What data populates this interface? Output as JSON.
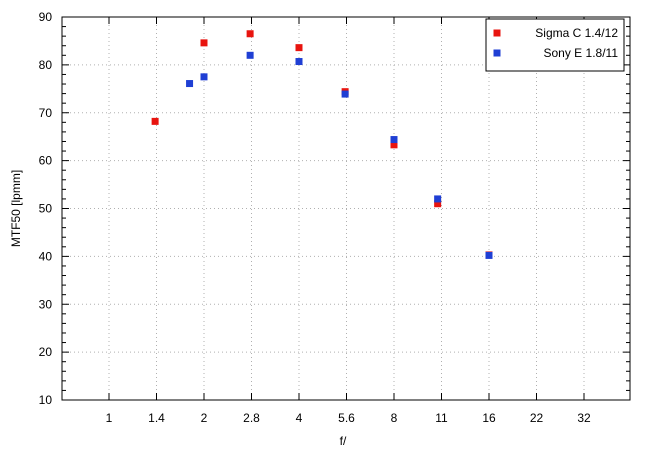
{
  "chart_data": {
    "type": "scatter",
    "title": "",
    "xlabel": "f/",
    "ylabel": "MTF50 [lpmm]",
    "x_ticks": [
      "1",
      "1.4",
      "2",
      "2.8",
      "4",
      "5.6",
      "8",
      "11",
      "16",
      "22",
      "32"
    ],
    "ylim": [
      10,
      90
    ],
    "y_ticks": [
      10,
      20,
      30,
      40,
      50,
      60,
      70,
      80,
      90
    ],
    "grid": true,
    "legend_position": "top-right",
    "series": [
      {
        "name": "Sigma C 1.4/12",
        "color": "#e8140f",
        "points": [
          {
            "x": 1.4,
            "y": 68.2
          },
          {
            "x": 2,
            "y": 84.6
          },
          {
            "x": 2.8,
            "y": 86.5
          },
          {
            "x": 4,
            "y": 83.6
          },
          {
            "x": 5.6,
            "y": 74.4
          },
          {
            "x": 8,
            "y": 63.3
          },
          {
            "x": 11,
            "y": 51.0
          },
          {
            "x": 16,
            "y": 40.3
          }
        ]
      },
      {
        "name": "Sony E 1.8/11",
        "color": "#1f3fd4",
        "points": [
          {
            "x": 1.8,
            "y": 76.1
          },
          {
            "x": 2,
            "y": 77.5
          },
          {
            "x": 2.8,
            "y": 82.0
          },
          {
            "x": 4,
            "y": 80.7
          },
          {
            "x": 5.6,
            "y": 73.9
          },
          {
            "x": 8,
            "y": 64.4
          },
          {
            "x": 11,
            "y": 52.0
          },
          {
            "x": 16,
            "y": 40.2
          }
        ]
      }
    ]
  }
}
